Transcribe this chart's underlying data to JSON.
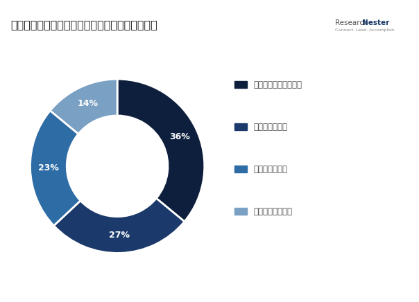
{
  "title": "成長要因の貢献ーアルコールエトキシレート市場",
  "slices": [
    36,
    27,
    23,
    14
  ],
  "labels": [
    "36%",
    "27%",
    "23%",
    "14%"
  ],
  "colors": [
    "#0d1f3c",
    "#1b3a6b",
    "#2e6ca6",
    "#7aa0c4"
  ],
  "legend_labels": [
    "石油とガス部門の成長",
    "衛生意識の向上",
    "繊維産業の急増",
    "環境意識の高まり"
  ],
  "bg_color": "#ffffff",
  "title_fontsize": 11.5,
  "label_fontsize": 9,
  "legend_fontsize": 8.5,
  "donut_width": 0.42,
  "start_angle": 90
}
